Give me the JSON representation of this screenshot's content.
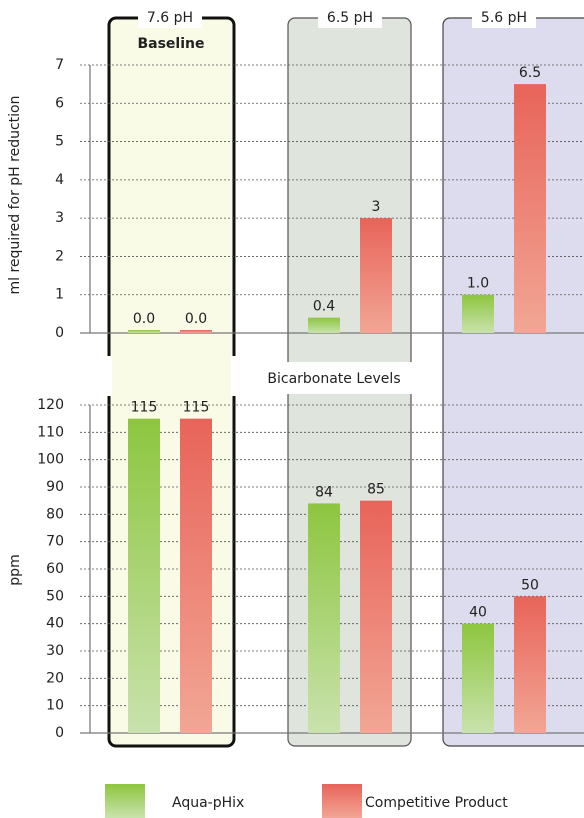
{
  "chart_data": [
    {
      "type": "bar",
      "ylabel": "ml required for pH reduction",
      "categories": [
        "7.6 pH",
        "6.5 pH",
        "5.6 pH"
      ],
      "annotation": "Baseline",
      "series": [
        {
          "name": "Aqua-pHix",
          "color": "#8dc63f",
          "values": [
            0.0,
            0.4,
            1.0
          ],
          "value_labels": [
            "0.0",
            "0.4",
            "1.0"
          ]
        },
        {
          "name": "Competitive Product",
          "color": "#e8645a",
          "values": [
            0.0,
            3,
            6.5
          ],
          "value_labels": [
            "0.0",
            "3",
            "6.5"
          ]
        }
      ],
      "ylim": [
        0,
        7
      ],
      "yticks": [
        0,
        1,
        2,
        3,
        4,
        5,
        6,
        7
      ],
      "grid": true
    },
    {
      "type": "bar",
      "title": "Bicarbonate Levels",
      "ylabel": "ppm",
      "series": [
        {
          "color": "#8dc63f",
          "values": [
            115,
            84,
            40
          ]
        },
        {
          "color": "#e8645a",
          "values": [
            115,
            85,
            50
          ]
        }
      ],
      "ylim": [
        0,
        120
      ],
      "yticks": [
        0,
        10,
        20,
        30,
        40,
        50,
        60,
        70,
        80,
        90,
        100,
        110,
        120
      ],
      "grid": true
    }
  ]
}
